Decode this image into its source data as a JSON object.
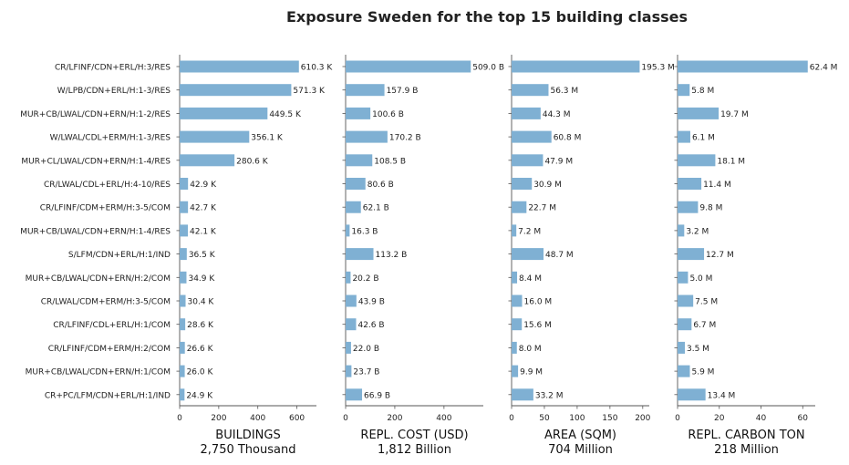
{
  "chart_data": {
    "type": "bar",
    "orientation": "horizontal",
    "title": "Exposure Sweden for the top 15 building classes",
    "bar_color": "#7fb0d3",
    "grid": false,
    "categories": [
      "CR/LFINF/CDN+ERL/H:3/RES",
      "W/LPB/CDN+ERL/H:1-3/RES",
      "MUR+CB/LWAL/CDN+ERN/H:1-2/RES",
      "W/LWAL/CDL+ERM/H:1-3/RES",
      "MUR+CL/LWAL/CDN+ERN/H:1-4/RES",
      "CR/LWAL/CDL+ERL/H:4-10/RES",
      "CR/LFINF/CDM+ERM/H:3-5/COM",
      "MUR+CB/LWAL/CDN+ERN/H:1-4/RES",
      "S/LFM/CDN+ERL/H:1/IND",
      "MUR+CB/LWAL/CDN+ERN/H:2/COM",
      "CR/LWAL/CDM+ERM/H:3-5/COM",
      "CR/LFINF/CDL+ERL/H:1/COM",
      "CR/LFINF/CDM+ERM/H:2/COM",
      "MUR+CB/LWAL/CDN+ERN/H:1/COM",
      "CR+PC/LFM/CDN+ERL/H:1/IND"
    ],
    "panels": [
      {
        "xlabel": "BUILDINGS",
        "subtitle": "2,750 Thousand",
        "xlim": [
          0,
          700
        ],
        "ticks": [
          0,
          200,
          400,
          600
        ],
        "tick_labels": [
          "0",
          "200",
          "400",
          "600"
        ],
        "values": [
          610.3,
          571.3,
          449.5,
          356.1,
          280.6,
          42.9,
          42.7,
          42.1,
          36.5,
          34.9,
          30.4,
          28.6,
          26.6,
          26.0,
          24.9
        ],
        "labels": [
          "610.3 K",
          "571.3 K",
          "449.5 K",
          "356.1 K",
          "280.6 K",
          "42.9 K",
          "42.7 K",
          "42.1 K",
          "36.5 K",
          "34.9 K",
          "30.4 K",
          "28.6 K",
          "26.6 K",
          "26.0 K",
          "24.9 K"
        ]
      },
      {
        "xlabel": "REPL. COST (USD)",
        "subtitle": "1,812 Billion",
        "xlim": [
          0,
          560
        ],
        "ticks": [
          0,
          200,
          400
        ],
        "tick_labels": [
          "0",
          "200",
          "400"
        ],
        "values": [
          509.0,
          157.9,
          100.6,
          170.2,
          108.5,
          80.6,
          62.1,
          16.3,
          113.2,
          20.2,
          43.9,
          42.6,
          22.0,
          23.7,
          66.9
        ],
        "labels": [
          "509.0 B",
          "157.9 B",
          "100.6 B",
          "170.2 B",
          "108.5 B",
          "80.6 B",
          "62.1 B",
          "16.3 B",
          "113.2 B",
          "20.2 B",
          "43.9 B",
          "42.6 B",
          "22.0 B",
          "23.7 B",
          "66.9 B"
        ]
      },
      {
        "xlabel": "AREA (SQM)",
        "subtitle": "704 Million",
        "xlim": [
          0,
          210
        ],
        "ticks": [
          0,
          50,
          100,
          150,
          200
        ],
        "tick_labels": [
          "0",
          "50",
          "100",
          "150",
          "200"
        ],
        "values": [
          195.3,
          56.3,
          44.3,
          60.8,
          47.9,
          30.9,
          22.7,
          7.2,
          48.7,
          8.4,
          16.0,
          15.6,
          8.0,
          9.9,
          33.2
        ],
        "labels": [
          "195.3 M",
          "56.3 M",
          "44.3 M",
          "60.8 M",
          "47.9 M",
          "30.9 M",
          "22.7 M",
          "7.2 M",
          "48.7 M",
          "8.4 M",
          "16.0 M",
          "15.6 M",
          "8.0 M",
          "9.9 M",
          "33.2 M"
        ]
      },
      {
        "xlabel": "REPL. CARBON TON",
        "subtitle": "218 Million",
        "xlim": [
          0,
          66
        ],
        "ticks": [
          0,
          20,
          40,
          60
        ],
        "tick_labels": [
          "0",
          "20",
          "40",
          "60"
        ],
        "values": [
          62.4,
          5.8,
          19.7,
          6.1,
          18.1,
          11.4,
          9.8,
          3.2,
          12.7,
          5.0,
          7.5,
          6.7,
          3.5,
          5.9,
          13.4
        ],
        "labels": [
          "62.4 M",
          "5.8 M",
          "19.7 M",
          "6.1 M",
          "18.1 M",
          "11.4 M",
          "9.8 M",
          "3.2 M",
          "12.7 M",
          "5.0 M",
          "7.5 M",
          "6.7 M",
          "3.5 M",
          "5.9 M",
          "13.4 M"
        ]
      }
    ]
  }
}
